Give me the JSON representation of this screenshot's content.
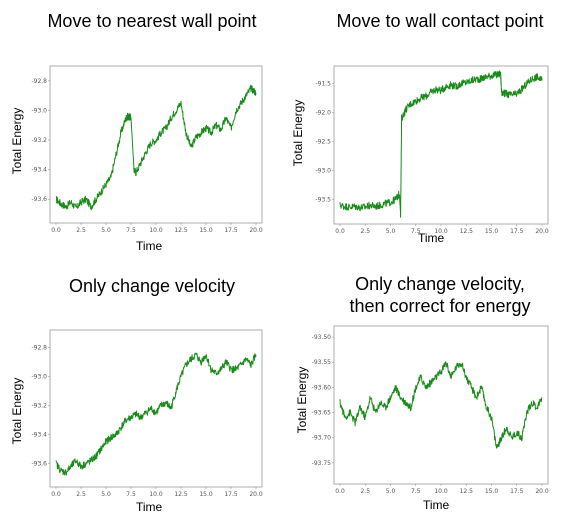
{
  "chart_data": [
    {
      "type": "line",
      "title": "Move to nearest wall point",
      "xlabel": "Time",
      "ylabel": "Total Energy",
      "xlim": [
        0,
        20
      ],
      "ylim": [
        -93.72,
        -92.74
      ],
      "xticks": [
        "0.0",
        "2.5",
        "5.0",
        "7.5",
        "10.0",
        "12.5",
        "15.0",
        "17.5",
        "20.0"
      ],
      "yticks": [
        "-92.8",
        "-93.0",
        "-93.2",
        "-93.4",
        "-93.6"
      ],
      "x": [
        0,
        0.5,
        1,
        1.5,
        2,
        2.5,
        3,
        3.5,
        4,
        4.5,
        5,
        5.5,
        6,
        6.5,
        7,
        7.2,
        7.5,
        7.8,
        8,
        8.5,
        9,
        9.5,
        10,
        10.5,
        11,
        11.5,
        12,
        12.5,
        13,
        13.5,
        14,
        14.5,
        15,
        15.5,
        16,
        16.5,
        17,
        17.5,
        18,
        18.5,
        19,
        19.5,
        20
      ],
      "series": [
        {
          "values": [
            -93.6,
            -93.63,
            -93.65,
            -93.62,
            -93.66,
            -93.62,
            -93.6,
            -93.65,
            -93.6,
            -93.55,
            -93.5,
            -93.45,
            -93.3,
            -93.15,
            -93.05,
            -93.04,
            -93.05,
            -93.4,
            -93.42,
            -93.35,
            -93.28,
            -93.22,
            -93.2,
            -93.15,
            -93.12,
            -93.05,
            -93.0,
            -92.95,
            -93.15,
            -93.25,
            -93.18,
            -93.15,
            -93.12,
            -93.15,
            -93.1,
            -93.13,
            -93.05,
            -93.12,
            -93.0,
            -92.95,
            -92.9,
            -92.85,
            -92.88
          ]
        }
      ]
    },
    {
      "type": "line",
      "title": "Move to wall contact point",
      "xlabel": "Time",
      "ylabel": "Total Energy",
      "xlim": [
        0,
        20
      ],
      "ylim": [
        -93.82,
        -91.3
      ],
      "xticks": [
        "0.0",
        "2.5",
        "5.0",
        "7.5",
        "10.0",
        "12.5",
        "15.0",
        "17.5",
        "20.0"
      ],
      "yticks": [
        "-91.5",
        "-92.0",
        "-92.5",
        "-93.0",
        "-93.5"
      ],
      "x": [
        0,
        0.5,
        1,
        1.5,
        2,
        2.5,
        3,
        3.5,
        4,
        4.5,
        5,
        5.5,
        5.9,
        6.0,
        6.1,
        6.5,
        7,
        7.5,
        8,
        8.5,
        9,
        9.5,
        10,
        10.5,
        11,
        11.5,
        12,
        12.5,
        13,
        13.5,
        14,
        14.5,
        15,
        15.5,
        15.9,
        16.0,
        16.5,
        17,
        17.5,
        18,
        18.5,
        19,
        19.5,
        20
      ],
      "series": [
        {
          "values": [
            -93.6,
            -93.62,
            -93.63,
            -93.62,
            -93.64,
            -93.63,
            -93.6,
            -93.62,
            -93.6,
            -93.57,
            -93.55,
            -93.5,
            -93.4,
            -93.8,
            -92.1,
            -91.95,
            -91.85,
            -91.8,
            -91.75,
            -91.72,
            -91.65,
            -91.6,
            -91.62,
            -91.55,
            -91.52,
            -91.55,
            -91.5,
            -91.48,
            -91.45,
            -91.42,
            -91.42,
            -91.38,
            -91.36,
            -91.35,
            -91.33,
            -91.65,
            -91.68,
            -91.7,
            -91.68,
            -91.6,
            -91.5,
            -91.42,
            -91.38,
            -91.45
          ]
        }
      ]
    },
    {
      "type": "line",
      "title": "Only change velocity",
      "xlabel": "Time",
      "ylabel": "Total Energy",
      "xlim": [
        0,
        20
      ],
      "ylim": [
        -93.72,
        -92.72
      ],
      "xticks": [
        "0.0",
        "2.5",
        "5.0",
        "7.5",
        "10.0",
        "12.5",
        "15.0",
        "17.5",
        "20.0"
      ],
      "yticks": [
        "-92.8",
        "-93.0",
        "-93.2",
        "-93.4",
        "-93.6"
      ],
      "x": [
        0,
        0.5,
        1,
        1.5,
        2,
        2.5,
        3,
        3.5,
        4,
        4.5,
        5,
        5.5,
        6,
        6.5,
        7,
        7.5,
        8,
        8.5,
        9,
        9.5,
        10,
        10.5,
        11,
        11.5,
        12,
        12.5,
        13,
        13.5,
        14,
        14.5,
        15,
        15.5,
        16,
        16.5,
        17,
        17.5,
        18,
        18.5,
        19,
        19.5,
        20
      ],
      "series": [
        {
          "values": [
            -93.6,
            -93.65,
            -93.66,
            -93.62,
            -93.58,
            -93.62,
            -93.6,
            -93.58,
            -93.55,
            -93.5,
            -93.45,
            -93.42,
            -93.4,
            -93.35,
            -93.3,
            -93.28,
            -93.26,
            -93.28,
            -93.25,
            -93.22,
            -93.25,
            -93.2,
            -93.18,
            -93.22,
            -93.1,
            -93.0,
            -92.92,
            -92.88,
            -92.85,
            -92.9,
            -92.85,
            -92.95,
            -92.98,
            -92.95,
            -92.9,
            -92.95,
            -92.95,
            -92.92,
            -92.88,
            -92.92,
            -92.85
          ]
        }
      ]
    },
    {
      "type": "line",
      "title": "Only change velocity,\nthen correct for energy",
      "xlabel": "Time",
      "ylabel": "Total Energy",
      "xlim": [
        0,
        20
      ],
      "ylim": [
        -93.78,
        -93.49
      ],
      "xticks": [
        "0.0",
        "2.5",
        "5.0",
        "7.5",
        "10.0",
        "12.5",
        "15.0",
        "17.5",
        "20.0"
      ],
      "yticks": [
        "-93.50",
        "-93.55",
        "-93.60",
        "-93.65",
        "-93.70",
        "-93.75"
      ],
      "x": [
        0,
        0.5,
        1,
        1.5,
        2,
        2.5,
        3,
        3.5,
        4,
        4.5,
        5,
        5.5,
        6,
        6.5,
        7,
        7.5,
        8,
        8.5,
        9,
        9.5,
        10,
        10.5,
        11,
        11.5,
        12,
        12.5,
        13,
        13.5,
        14,
        14.5,
        15,
        15.5,
        16,
        16.5,
        17,
        17.5,
        18,
        18.5,
        19,
        19.5,
        20
      ],
      "series": [
        {
          "values": [
            -93.63,
            -93.66,
            -93.65,
            -93.67,
            -93.64,
            -93.66,
            -93.62,
            -93.65,
            -93.63,
            -93.64,
            -93.62,
            -93.6,
            -93.62,
            -93.63,
            -93.64,
            -93.6,
            -93.58,
            -93.6,
            -93.59,
            -93.58,
            -93.57,
            -93.55,
            -93.58,
            -93.56,
            -93.55,
            -93.58,
            -93.6,
            -93.62,
            -93.6,
            -93.64,
            -93.66,
            -93.72,
            -93.7,
            -93.68,
            -93.7,
            -93.69,
            -93.7,
            -93.65,
            -93.63,
            -93.64,
            -93.62
          ]
        }
      ]
    }
  ]
}
